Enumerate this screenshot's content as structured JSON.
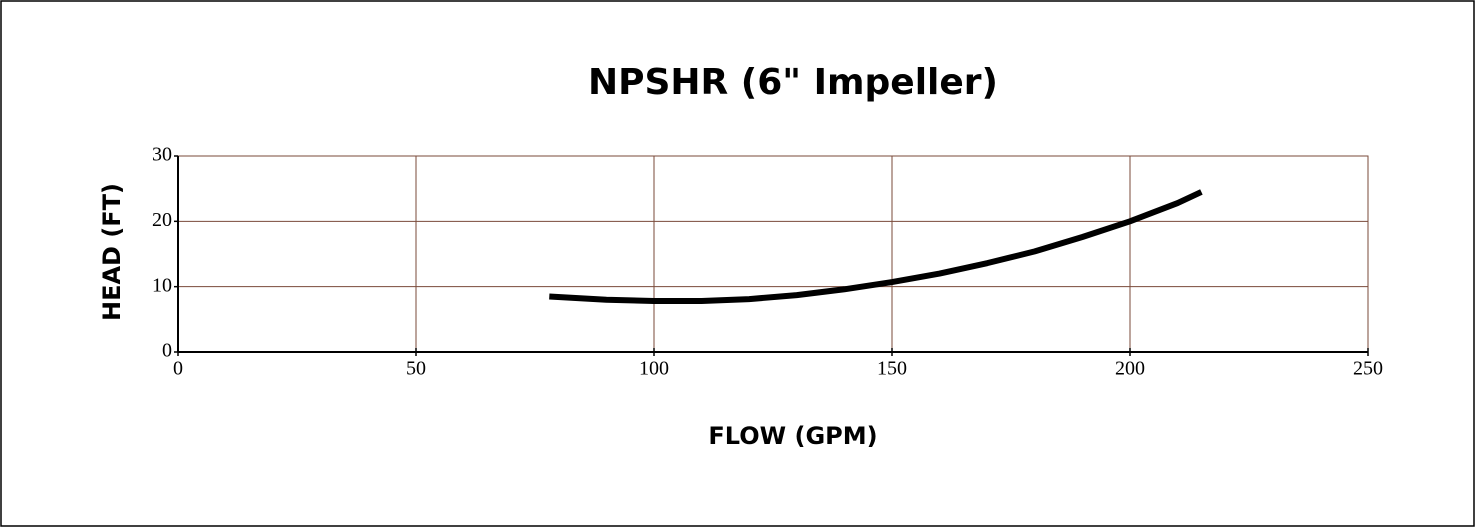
{
  "chart_data": {
    "type": "line",
    "title": "NPSHR (6\" Impeller)",
    "xlabel": "FLOW  (GPM)",
    "ylabel": "HEAD  (FT)",
    "x": [
      78,
      90,
      100,
      110,
      120,
      130,
      140,
      150,
      160,
      170,
      180,
      190,
      200,
      210,
      215
    ],
    "series": [
      {
        "name": "NPSHR",
        "color": "#000000",
        "values": [
          8.5,
          8.0,
          7.8,
          7.8,
          8.1,
          8.7,
          9.6,
          10.7,
          12.0,
          13.6,
          15.4,
          17.6,
          20.0,
          22.8,
          24.5
        ]
      }
    ],
    "xlim": [
      0,
      250
    ],
    "xticks": [
      0,
      50,
      100,
      150,
      200,
      250
    ],
    "ylim": [
      0,
      30
    ],
    "yticks": [
      0,
      10,
      20,
      30
    ],
    "grid": true
  }
}
